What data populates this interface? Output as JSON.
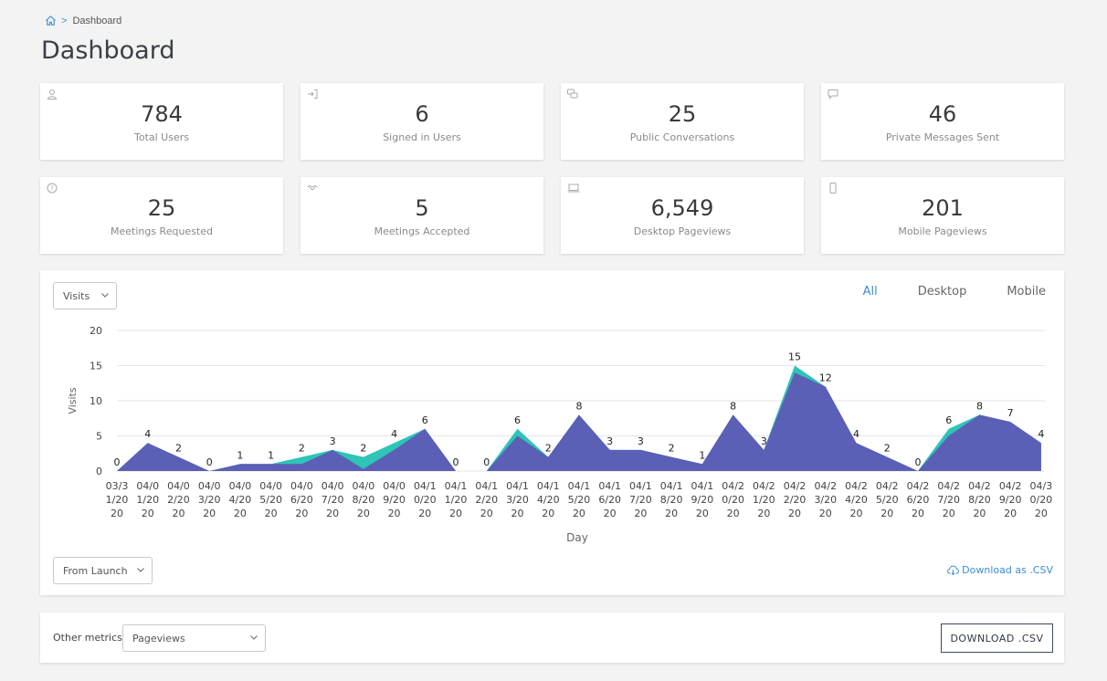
{
  "breadcrumb": {
    "current": "Dashboard",
    "separator": ">"
  },
  "page_title": "Dashboard",
  "stats": [
    {
      "value": "784",
      "label": "Total Users",
      "icon": "user-icon"
    },
    {
      "value": "6",
      "label": "Signed in Users",
      "icon": "sign-in-icon"
    },
    {
      "value": "25",
      "label": "Public Conversations",
      "icon": "chat-bubbles-icon"
    },
    {
      "value": "46",
      "label": "Private Messages Sent",
      "icon": "message-icon"
    },
    {
      "value": "25",
      "label": "Meetings Requested",
      "icon": "question-icon"
    },
    {
      "value": "5",
      "label": "Meetings Accepted",
      "icon": "handshake-icon"
    },
    {
      "value": "6,549",
      "label": "Desktop Pageviews",
      "icon": "laptop-icon"
    },
    {
      "value": "201",
      "label": "Mobile Pageviews",
      "icon": "mobile-icon"
    }
  ],
  "chart_controls": {
    "metric_select": "Visits",
    "range_select": "From Launch",
    "tabs": [
      "All",
      "Desktop",
      "Mobile"
    ],
    "active_tab": "All",
    "download_link": "Download as .CSV"
  },
  "colors": {
    "accent": "#3a8fd0",
    "series_all": "#2ec4b6",
    "series_desktop": "#5b5fb5"
  },
  "chart_data": {
    "type": "area",
    "xlabel": "Day",
    "ylabel": "Visits",
    "ylim": [
      0,
      20
    ],
    "yticks": [
      "0",
      "5",
      "10",
      "15",
      "20"
    ],
    "x_lines": [
      [
        "03/3",
        "1/20",
        "20"
      ],
      [
        "04/0",
        "1/20",
        "20"
      ],
      [
        "04/0",
        "2/20",
        "20"
      ],
      [
        "04/0",
        "3/20",
        "20"
      ],
      [
        "04/0",
        "4/20",
        "20"
      ],
      [
        "04/0",
        "5/20",
        "20"
      ],
      [
        "04/0",
        "6/20",
        "20"
      ],
      [
        "04/0",
        "7/20",
        "20"
      ],
      [
        "04/0",
        "8/20",
        "20"
      ],
      [
        "04/0",
        "9/20",
        "20"
      ],
      [
        "04/1",
        "0/20",
        "20"
      ],
      [
        "04/1",
        "1/20",
        "20"
      ],
      [
        "04/1",
        "2/20",
        "20"
      ],
      [
        "04/1",
        "3/20",
        "20"
      ],
      [
        "04/1",
        "4/20",
        "20"
      ],
      [
        "04/1",
        "5/20",
        "20"
      ],
      [
        "04/1",
        "6/20",
        "20"
      ],
      [
        "04/1",
        "7/20",
        "20"
      ],
      [
        "04/1",
        "8/20",
        "20"
      ],
      [
        "04/1",
        "9/20",
        "20"
      ],
      [
        "04/2",
        "0/20",
        "20"
      ],
      [
        "04/2",
        "1/20",
        "20"
      ],
      [
        "04/2",
        "2/20",
        "20"
      ],
      [
        "04/2",
        "3/20",
        "20"
      ],
      [
        "04/2",
        "4/20",
        "20"
      ],
      [
        "04/2",
        "5/20",
        "20"
      ],
      [
        "04/2",
        "6/20",
        "20"
      ],
      [
        "04/2",
        "7/20",
        "20"
      ],
      [
        "04/2",
        "8/20",
        "20"
      ],
      [
        "04/2",
        "9/20",
        "20"
      ],
      [
        "04/3",
        "0/20",
        "20"
      ]
    ],
    "series": [
      {
        "values": [
          0,
          4,
          2,
          0,
          1,
          1,
          2,
          3,
          2,
          4,
          6,
          0,
          0,
          6,
          2,
          8,
          3,
          3,
          2,
          1,
          8,
          3,
          15,
          12,
          4,
          2,
          0,
          6,
          8,
          7,
          4
        ]
      },
      {
        "values": [
          0,
          4,
          2,
          0,
          1,
          1,
          1,
          3,
          0.3,
          3,
          6,
          0,
          0,
          5,
          2,
          8,
          3,
          3,
          2,
          1,
          8,
          3,
          14,
          12,
          4,
          2,
          0,
          5,
          8,
          7,
          4
        ]
      }
    ],
    "data_labels": [
      "0",
      "4",
      "2",
      "0",
      "1",
      "1",
      "2",
      "3",
      "2",
      "4",
      "6",
      "0",
      "0",
      "6",
      "2",
      "8",
      "3",
      "3",
      "2",
      "1",
      "8",
      "3",
      "15",
      "12",
      "4",
      "2",
      "0",
      "6",
      "8",
      "7",
      "4"
    ],
    "grid": true
  },
  "bottom": {
    "other_metrics_label": "Other metrics:",
    "other_metrics_select": "Pageviews",
    "download_button": "DOWNLOAD .CSV"
  }
}
